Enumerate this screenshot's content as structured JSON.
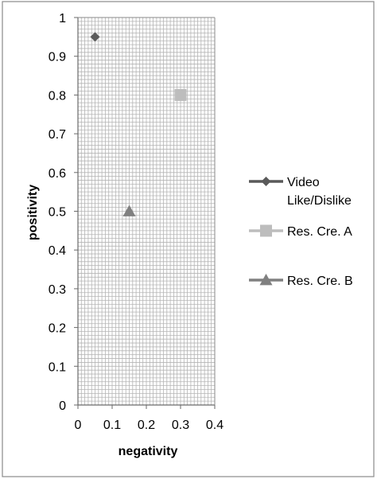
{
  "chart_data": {
    "type": "scatter",
    "title": "",
    "xlabel": "negativity",
    "ylabel": "positivity",
    "xlim": [
      0,
      0.4
    ],
    "ylim": [
      0,
      1
    ],
    "xticks": [
      0,
      0.1,
      0.2,
      0.3,
      0.4
    ],
    "yticks": [
      0,
      0.1,
      0.2,
      0.3,
      0.4,
      0.5,
      0.6,
      0.7,
      0.8,
      0.9,
      1
    ],
    "grid": true,
    "legend_position": "right",
    "series": [
      {
        "name": "Video Like/Dislike",
        "marker": "diamond",
        "color": "#5a5a5a",
        "points": [
          {
            "x": 0.05,
            "y": 0.95
          }
        ]
      },
      {
        "name": "Res. Cre. A",
        "marker": "square",
        "color": "#bdbdbd",
        "points": [
          {
            "x": 0.3,
            "y": 0.8
          }
        ]
      },
      {
        "name": "Res. Cre. B",
        "marker": "triangle",
        "color": "#808080",
        "points": [
          {
            "x": 0.15,
            "y": 0.5
          }
        ]
      }
    ]
  }
}
